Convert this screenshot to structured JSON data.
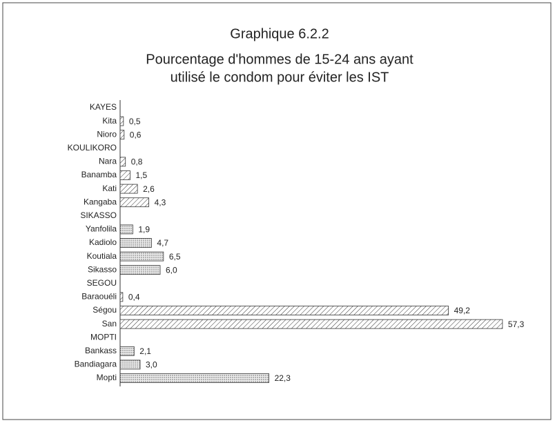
{
  "chart_data": {
    "type": "hbar",
    "title": "Graphique 6.2.2",
    "subtitle": [
      "Pourcentage d'hommes de 15-24 ans ayant",
      "utilisé le condom pour éviter les IST"
    ],
    "categories": [
      "KAYES",
      "Kita",
      "Nioro",
      "KOULIKORO",
      "Nara",
      "Banamba",
      "Kati",
      "Kangaba",
      "SIKASSO",
      "Yanfolila",
      "Kadiolo",
      "Koutiala",
      "Sikasso",
      "SEGOU",
      "Baraouéli",
      "Ségou",
      "San",
      "MOPTI",
      "Bankass",
      "Bandiagara",
      "Mopti"
    ],
    "values": [
      null,
      0.5,
      0.6,
      null,
      0.8,
      1.5,
      2.6,
      4.3,
      null,
      1.9,
      4.7,
      6.5,
      6.0,
      null,
      0.4,
      49.2,
      57.3,
      null,
      2.1,
      3.0,
      22.3
    ],
    "value_labels": [
      null,
      "0,5",
      "0,6",
      null,
      "0,8",
      "1,5",
      "2,6",
      "4,3",
      null,
      "1,9",
      "4,7",
      "6,5",
      "6,0",
      null,
      "0,4",
      "49,2",
      "57,3",
      null,
      "2,1",
      "3,0",
      "22,3"
    ],
    "patterns": [
      null,
      "hatch",
      "hatch",
      null,
      "hatch",
      "hatch",
      "hatch",
      "hatch",
      null,
      "dots",
      "dots",
      "dots",
      "dots",
      null,
      "hatch",
      "hatch",
      "hatch",
      null,
      "dots",
      "dots",
      "dots"
    ],
    "xlim": [
      0,
      60
    ]
  }
}
